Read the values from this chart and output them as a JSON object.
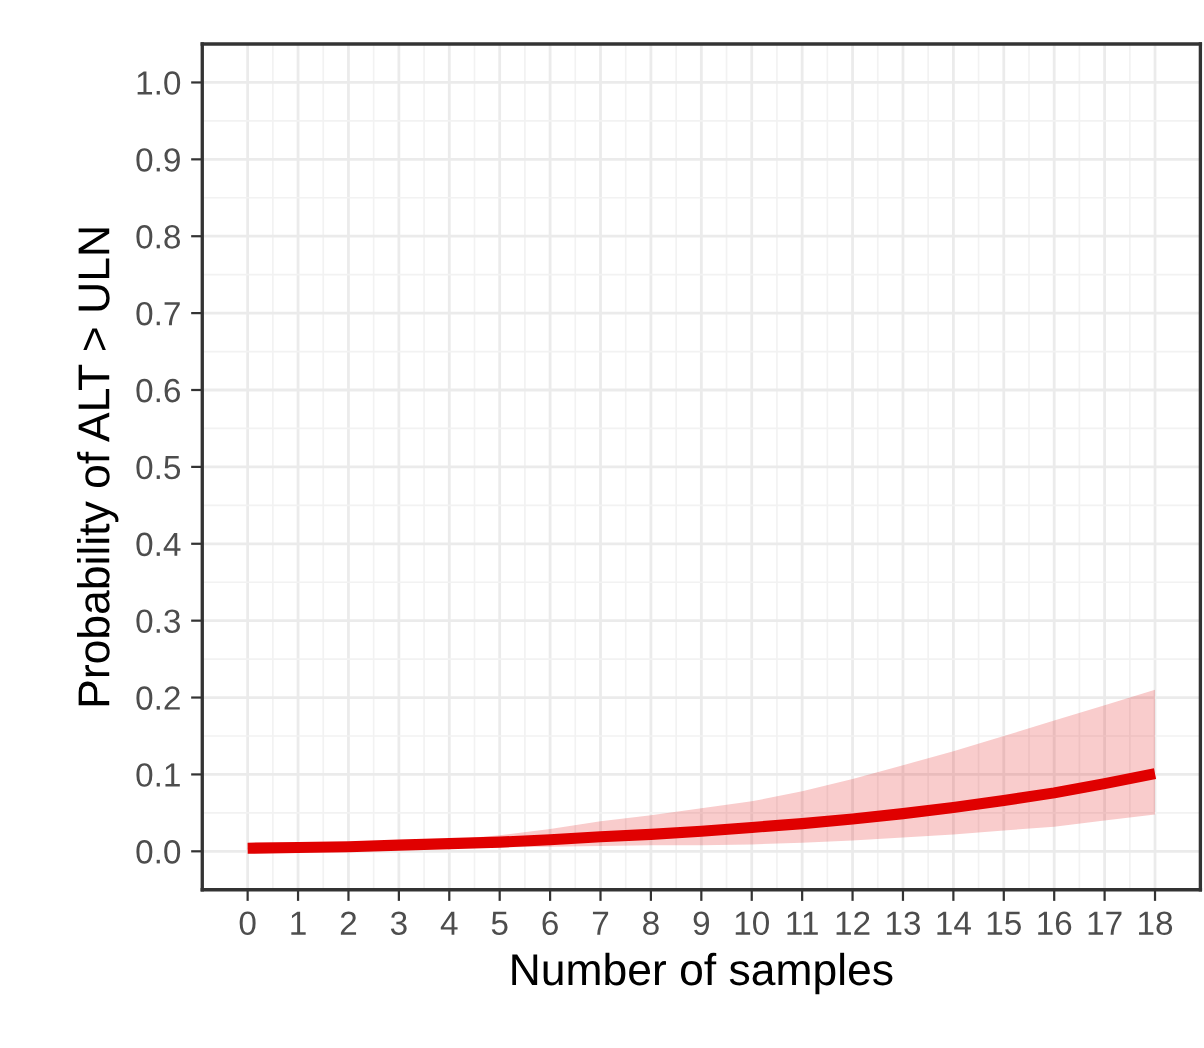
{
  "chart_data": {
    "type": "line",
    "xlabel": "Number of samples",
    "ylabel": "Probability of ALT > ULN",
    "x": [
      0,
      1,
      2,
      3,
      4,
      5,
      6,
      7,
      8,
      9,
      10,
      11,
      12,
      13,
      14,
      15,
      16,
      17,
      18
    ],
    "series": [
      {
        "color": "#e00000",
        "values": [
          0.004,
          0.005,
          0.006,
          0.008,
          0.01,
          0.012,
          0.015,
          0.019,
          0.022,
          0.026,
          0.031,
          0.036,
          0.042,
          0.049,
          0.057,
          0.066,
          0.076,
          0.088,
          0.101
        ],
        "lower": [
          0.003,
          0.003,
          0.004,
          0.004,
          0.005,
          0.005,
          0.006,
          0.007,
          0.008,
          0.008,
          0.009,
          0.011,
          0.014,
          0.018,
          0.022,
          0.027,
          0.032,
          0.04,
          0.048
        ],
        "upper": [
          0.005,
          0.006,
          0.008,
          0.011,
          0.015,
          0.021,
          0.029,
          0.039,
          0.047,
          0.056,
          0.065,
          0.078,
          0.094,
          0.112,
          0.13,
          0.15,
          0.17,
          0.19,
          0.21
        ]
      }
    ],
    "xlim": [
      -0.9,
      18.9
    ],
    "ylim": [
      -0.05,
      1.05
    ],
    "xticks": [
      0,
      1,
      2,
      3,
      4,
      5,
      6,
      7,
      8,
      9,
      10,
      11,
      12,
      13,
      14,
      15,
      16,
      17,
      18
    ],
    "yticks": [
      {
        "value": 0,
        "label": "0.0"
      },
      {
        "value": 0.1,
        "label": "0.1"
      },
      {
        "value": 0.2,
        "label": "0.2"
      },
      {
        "value": 0.3,
        "label": "0.3"
      },
      {
        "value": 0.4,
        "label": "0.4"
      },
      {
        "value": 0.5,
        "label": "0.5"
      },
      {
        "value": 0.6,
        "label": "0.6"
      },
      {
        "value": 0.7,
        "label": "0.7"
      },
      {
        "value": 0.8,
        "label": "0.8"
      },
      {
        "value": 0.9,
        "label": "0.9"
      },
      {
        "value": 1.0,
        "label": "1.0"
      }
    ],
    "grid": true,
    "marker": "none",
    "line_style": "solid"
  }
}
